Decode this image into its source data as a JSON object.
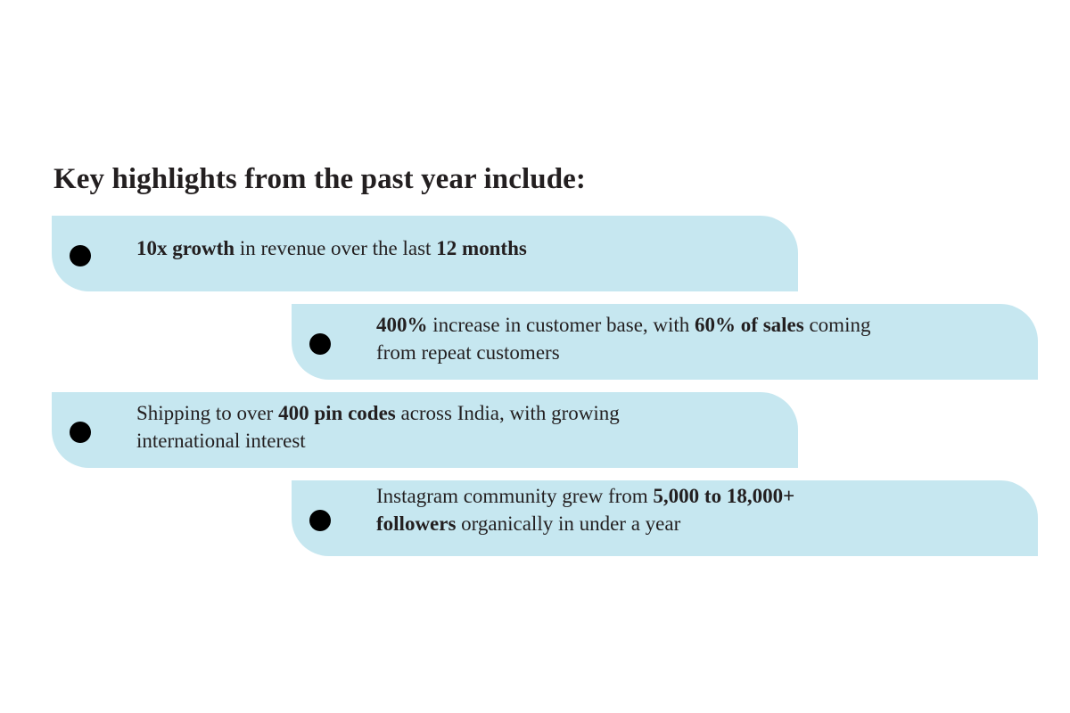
{
  "heading": "Key highlights from the past year include:",
  "colors": {
    "card_background": "#c6e7f0",
    "bullet": "#000000",
    "text": "#231f20"
  },
  "highlights": [
    {
      "lines": [
        [
          {
            "text": "10x growth",
            "bold": true
          },
          {
            "text": " in revenue over the last ",
            "bold": false
          },
          {
            "text": "12 months",
            "bold": true
          }
        ]
      ]
    },
    {
      "lines": [
        [
          {
            "text": "400%",
            "bold": true
          },
          {
            "text": " increase in customer base, with ",
            "bold": false
          },
          {
            "text": "60% of sales",
            "bold": true
          },
          {
            "text": " coming",
            "bold": false
          }
        ],
        [
          {
            "text": "from repeat customers",
            "bold": false
          }
        ]
      ]
    },
    {
      "lines": [
        [
          {
            "text": "Shipping to over ",
            "bold": false
          },
          {
            "text": "400 pin codes",
            "bold": true
          },
          {
            "text": " across India, with growing",
            "bold": false
          }
        ],
        [
          {
            "text": "international interest",
            "bold": false
          }
        ]
      ]
    },
    {
      "lines": [
        [
          {
            "text": "Instagram community grew from ",
            "bold": false
          },
          {
            "text": "5,000 to 18,000+",
            "bold": true
          }
        ],
        [
          {
            "text": "followers",
            "bold": true
          },
          {
            "text": " organically in under a year",
            "bold": false
          }
        ]
      ]
    }
  ]
}
